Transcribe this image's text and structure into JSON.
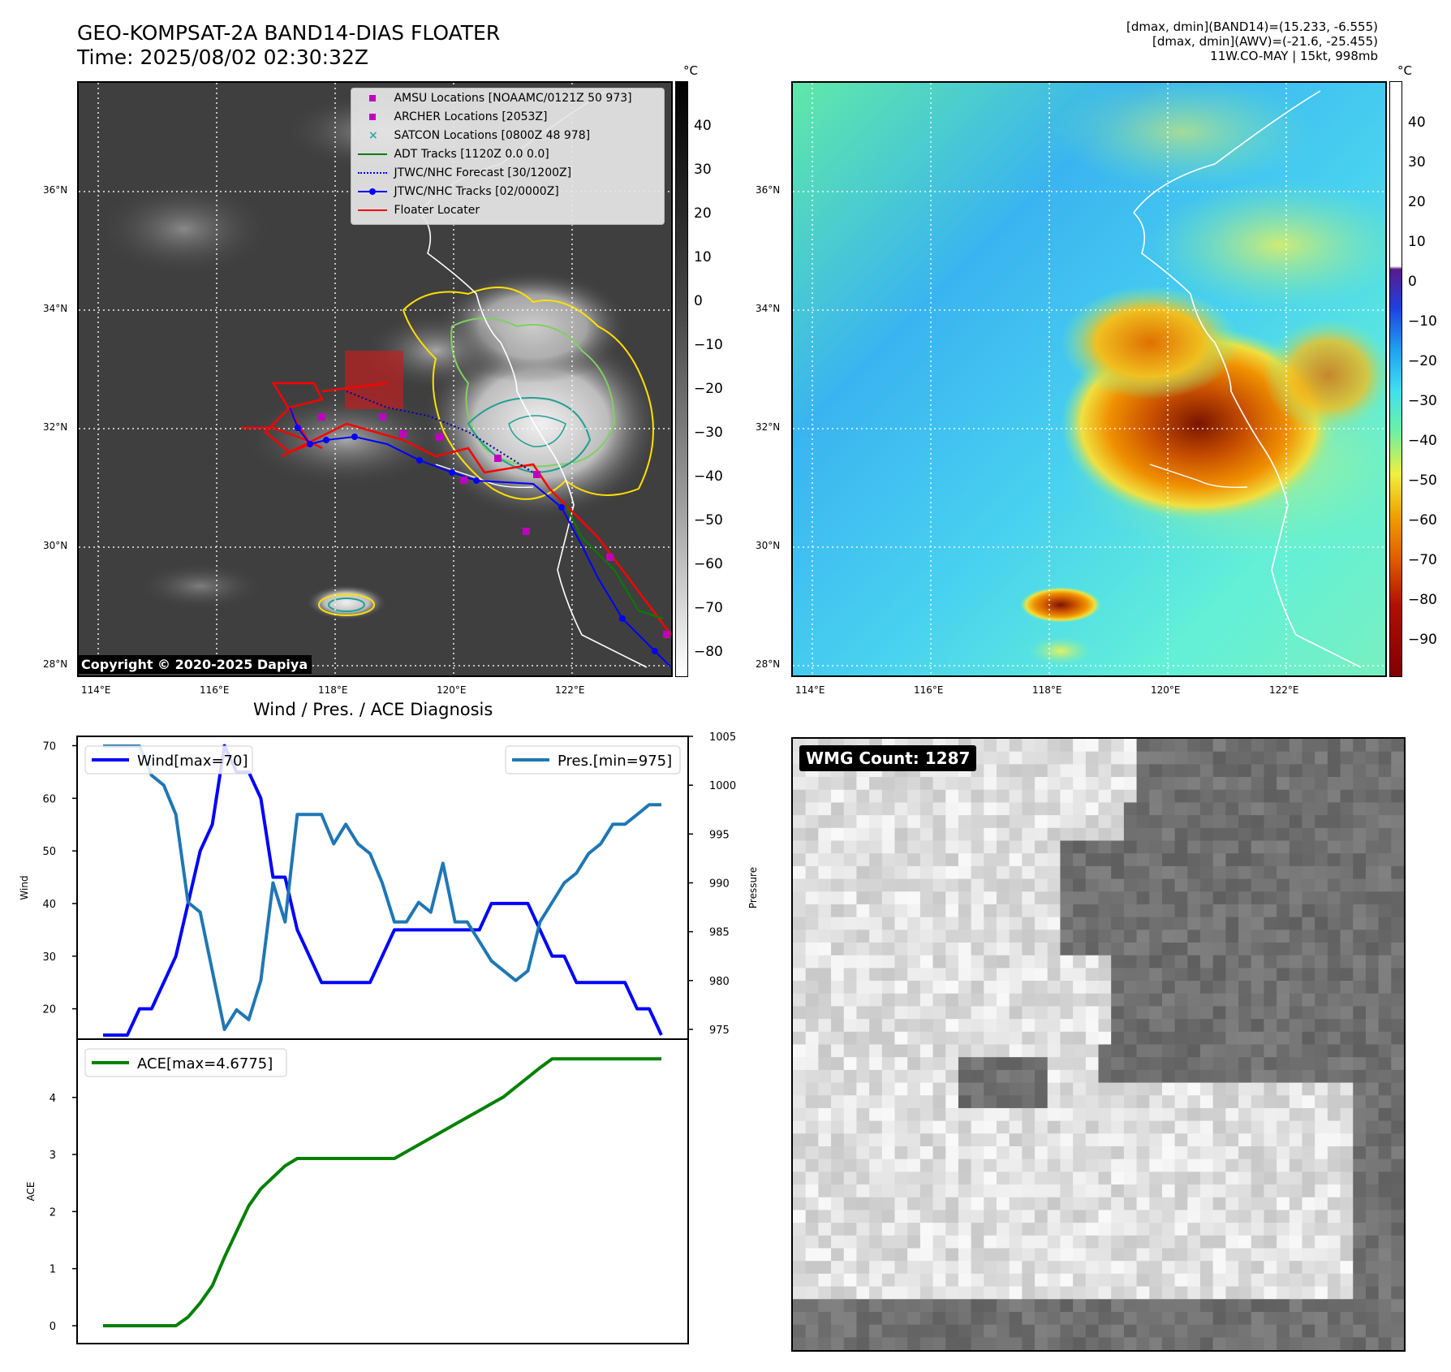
{
  "header": {
    "title_line1": "GEO-KOMPSAT-2A BAND14-DIAS FLOATER",
    "title_line2": "Time: 2025/08/02 02:30:32Z",
    "right_line1": "[dmax, dmin](BAND14)=(15.233, -6.555)",
    "right_line2": "[dmax, dmin](AWV)=(-21.6, -25.455)",
    "right_line3": "11W.CO-MAY | 15kt, 998mb"
  },
  "map_axes": {
    "lon_labels": [
      "114°E",
      "116°E",
      "118°E",
      "120°E",
      "122°E"
    ],
    "lat_labels": [
      "36°N",
      "34°N",
      "32°N",
      "30°N",
      "28°N"
    ],
    "lon_range": [
      113.7,
      123.7
    ],
    "lat_range": [
      27.8,
      37.8
    ]
  },
  "left_map": {
    "copyright": "Copyright © 2020-2025 Dapiya",
    "colorbar_unit": "°C",
    "colorbar_ticks": [
      "40",
      "30",
      "20",
      "10",
      "0",
      "−10",
      "−20",
      "−30",
      "−40",
      "−50",
      "−60",
      "−70",
      "−80"
    ],
    "legend": [
      {
        "label": "AMSU Locations [NOAAMC/0121Z 50 973]",
        "symbol": "square",
        "color": "#c000c0"
      },
      {
        "label": "ARCHER Locations [2053Z]",
        "symbol": "square",
        "color": "#c000c0"
      },
      {
        "label": "SATCON Locations [0800Z 48 978]",
        "symbol": "x",
        "color": "#20b0a0"
      },
      {
        "label": "ADT Tracks [1120Z 0.0 0.0]",
        "symbol": "line",
        "color": "#008000"
      },
      {
        "label": "JTWC/NHC Forecast [30/1200Z]",
        "symbol": "dotted",
        "color": "#0000ff"
      },
      {
        "label": "JTWC/NHC Tracks [02/0000Z]",
        "symbol": "line-dot",
        "color": "#0000ff"
      },
      {
        "label": "Floater Locater",
        "symbol": "line",
        "color": "#ff0000"
      }
    ]
  },
  "right_map": {
    "colorbar_unit": "°C",
    "colorbar_ticks": [
      "40",
      "30",
      "20",
      "10",
      "0",
      "−10",
      "−20",
      "−30",
      "−40",
      "−50",
      "−60",
      "−70",
      "−80",
      "−90"
    ]
  },
  "diagnosis": {
    "title": "Wind / Pres. / ACE Diagnosis"
  },
  "chart_data": [
    {
      "type": "line",
      "title": "Wind / Pres. / ACE Diagnosis",
      "ylabel": "Wind",
      "ylabel_right": "Pressure",
      "ylim": [
        15,
        71
      ],
      "ylim_right": [
        974,
        1005
      ],
      "yticks": [
        20,
        30,
        40,
        50,
        60,
        70
      ],
      "yticks_right": [
        975,
        980,
        985,
        990,
        995,
        1000,
        1005
      ],
      "series": [
        {
          "name": "Wind[max=70]",
          "axis": "left",
          "color": "#0000ff",
          "values": [
            15,
            15,
            15,
            20,
            20,
            25,
            30,
            40,
            50,
            55,
            70,
            65,
            65,
            60,
            45,
            45,
            35,
            30,
            25,
            25,
            25,
            25,
            25,
            30,
            35,
            35,
            35,
            35,
            35,
            35,
            35,
            35,
            40,
            40,
            40,
            40,
            35,
            30,
            30,
            25,
            25,
            25,
            25,
            25,
            20,
            20,
            15
          ]
        },
        {
          "name": "Pres.[min=975]",
          "axis": "right",
          "color": "#1f77b4",
          "values": [
            1004,
            1004,
            1004,
            1004,
            1001,
            1000,
            997,
            988,
            987,
            981,
            975,
            977,
            976,
            980,
            990,
            986,
            997,
            997,
            997,
            994,
            996,
            994,
            993,
            990,
            986,
            986,
            988,
            987,
            992,
            986,
            986,
            984,
            982,
            981,
            980,
            981,
            986,
            988,
            990,
            991,
            993,
            994,
            996,
            996,
            997,
            998,
            998
          ]
        }
      ]
    },
    {
      "type": "line",
      "ylabel": "ACE",
      "ylim": [
        -0.1,
        4.95
      ],
      "yticks": [
        0,
        1,
        2,
        3,
        4
      ],
      "series": [
        {
          "name": "ACE[max=4.6775]",
          "color": "#008000",
          "values": [
            0,
            0,
            0,
            0,
            0,
            0,
            0,
            0.15,
            0.4,
            0.7,
            1.2,
            1.65,
            2.1,
            2.4,
            2.6,
            2.8,
            2.93,
            2.93,
            2.93,
            2.93,
            2.93,
            2.93,
            2.93,
            2.93,
            2.93,
            3.05,
            3.17,
            3.29,
            3.41,
            3.53,
            3.65,
            3.77,
            3.89,
            4.01,
            4.18,
            4.35,
            4.52,
            4.6775,
            4.6775,
            4.6775,
            4.6775,
            4.6775,
            4.6775,
            4.6775,
            4.6775,
            4.6775,
            4.6775
          ]
        }
      ]
    }
  ],
  "wmg_panel": {
    "badge": "WMG Count: 1287"
  }
}
